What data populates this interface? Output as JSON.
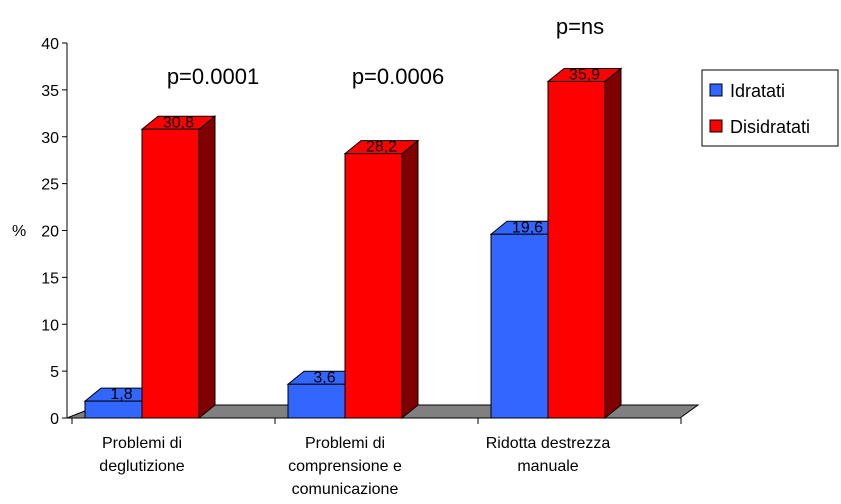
{
  "chart_data": {
    "type": "bar",
    "title": "",
    "xlabel": "",
    "ylabel": "%",
    "ylim": [
      0,
      40
    ],
    "yticks": [
      0,
      5,
      10,
      15,
      20,
      25,
      30,
      35,
      40
    ],
    "categories": [
      [
        "Problemi di",
        "deglutizione"
      ],
      [
        "Problemi di",
        "comprensione e",
        "comunicazione"
      ],
      [
        "Ridotta destrezza",
        "manuale"
      ]
    ],
    "series": [
      {
        "name": "Idratati",
        "color": "#3366FF",
        "side_color": "#1a2a80",
        "values": [
          1.8,
          3.6,
          19.6
        ],
        "labels": [
          "1,8",
          "3,6",
          "19,6"
        ]
      },
      {
        "name": "Disidratati",
        "color": "#FF0000",
        "side_color": "#800000",
        "values": [
          30.8,
          28.2,
          35.9
        ],
        "labels": [
          "30,8",
          "28,2",
          "35,9"
        ]
      }
    ],
    "annotations": [
      "p=0.0001",
      "p=0.0006",
      "p=ns"
    ],
    "legend_position": "right",
    "floor_color": "#808080",
    "three_d": true
  }
}
